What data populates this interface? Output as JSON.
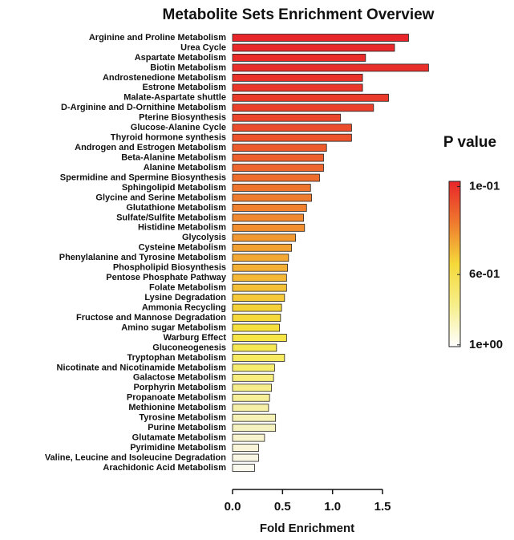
{
  "chart_data": {
    "type": "barh",
    "title": "Metabolite Sets Enrichment Overview",
    "x_label": "Fold Enrichment",
    "categories": [
      "Arginine and Proline Metabolism",
      "Urea Cycle",
      "Aspartate Metabolism",
      "Biotin Metabolism",
      "Androstenedione Metabolism",
      "Estrone Metabolism",
      "Malate-Aspartate shuttle",
      "D-Arginine and D-Ornithine Metabolism",
      "Pterine Biosynthesis",
      "Glucose-Alanine Cycle",
      "Thyroid hormone synthesis",
      "Androgen and Estrogen Metabolism",
      "Beta-Alanine Metabolism",
      "Alanine Metabolism",
      "Spermidine and Spermine Biosynthesis",
      "Sphingolipid Metabolism",
      "Glycine and Serine Metabolism",
      "Glutathione Metabolism",
      "Sulfate/Sulfite Metabolism",
      "Histidine Metabolism",
      "Glycolysis",
      "Cysteine Metabolism",
      "Phenylalanine and Tyrosine Metabolism",
      "Phospholipid Biosynthesis",
      "Pentose Phosphate Pathway",
      "Folate Metabolism",
      "Lysine Degradation",
      "Ammonia Recycling",
      "Fructose and Mannose Degradation",
      "Amino sugar Metabolism",
      "Warburg Effect",
      "Gluconeogenesis",
      "Tryptophan Metabolism",
      "Nicotinate and Nicotinamide Metabolism",
      "Galactose Metabolism",
      "Porphyrin Metabolism",
      "Propanoate Metabolism",
      "Methionine Metabolism",
      "Tyrosine Metabolism",
      "Purine Metabolism",
      "Glutamate Metabolism",
      "Pyrimidine Metabolism",
      "Valine, Leucine and Isoleucine Degradation",
      "Arachidonic Acid Metabolism"
    ],
    "values": [
      1.76,
      1.62,
      1.33,
      1.96,
      1.3,
      1.3,
      1.56,
      1.41,
      1.08,
      1.19,
      1.19,
      0.94,
      0.91,
      0.91,
      0.87,
      0.78,
      0.79,
      0.74,
      0.71,
      0.72,
      0.63,
      0.59,
      0.56,
      0.55,
      0.54,
      0.54,
      0.52,
      0.49,
      0.48,
      0.47,
      0.54,
      0.44,
      0.52,
      0.42,
      0.41,
      0.39,
      0.37,
      0.36,
      0.43,
      0.43,
      0.32,
      0.26,
      0.26,
      0.22
    ],
    "colors": [
      "#e8252a",
      "#e8282a",
      "#e92c2a",
      "#e92f2a",
      "#e9332a",
      "#ea372a",
      "#ea3b2a",
      "#ea402b",
      "#eb462b",
      "#eb4c2b",
      "#ec522c",
      "#ed5a2c",
      "#ed602d",
      "#ee662d",
      "#ee6d2d",
      "#ef752e",
      "#ef7b2e",
      "#f0812f",
      "#f0882f",
      "#f18e30",
      "#f29831",
      "#f2a032",
      "#f3a833",
      "#f3b034",
      "#f4b835",
      "#f4c036",
      "#f5c937",
      "#f5d138",
      "#f5d93a",
      "#f6e03d",
      "#f6e545",
      "#f6e852",
      "#f6ea60",
      "#f6ec6e",
      "#f6ed7c",
      "#f6ee8a",
      "#f6ef98",
      "#f6f0a6",
      "#f6f1b4",
      "#f6f2c0",
      "#f7f3cc",
      "#f8f5d8",
      "#f9f7e4",
      "#faf9ee"
    ],
    "xlim": [
      0,
      2.0
    ],
    "xticks": [
      {
        "value": 0,
        "label": "0.0"
      },
      0.5,
      {
        "value": 1.0,
        "label": "1.0"
      },
      1.5
    ],
    "colorbar": {
      "title": "P value",
      "lim": [
        0.07,
        1.01
      ],
      "colors": [
        "#e8252a",
        "#ef7a2e",
        "#f5d93a",
        "#f6ee8a",
        "#ffffff"
      ],
      "ticks": [
        {
          "value": 0.1,
          "label": "1e-01"
        },
        {
          "value": 0.6,
          "label": "6e-01"
        },
        {
          "value": 1.0,
          "label": "1e+00"
        }
      ]
    }
  }
}
